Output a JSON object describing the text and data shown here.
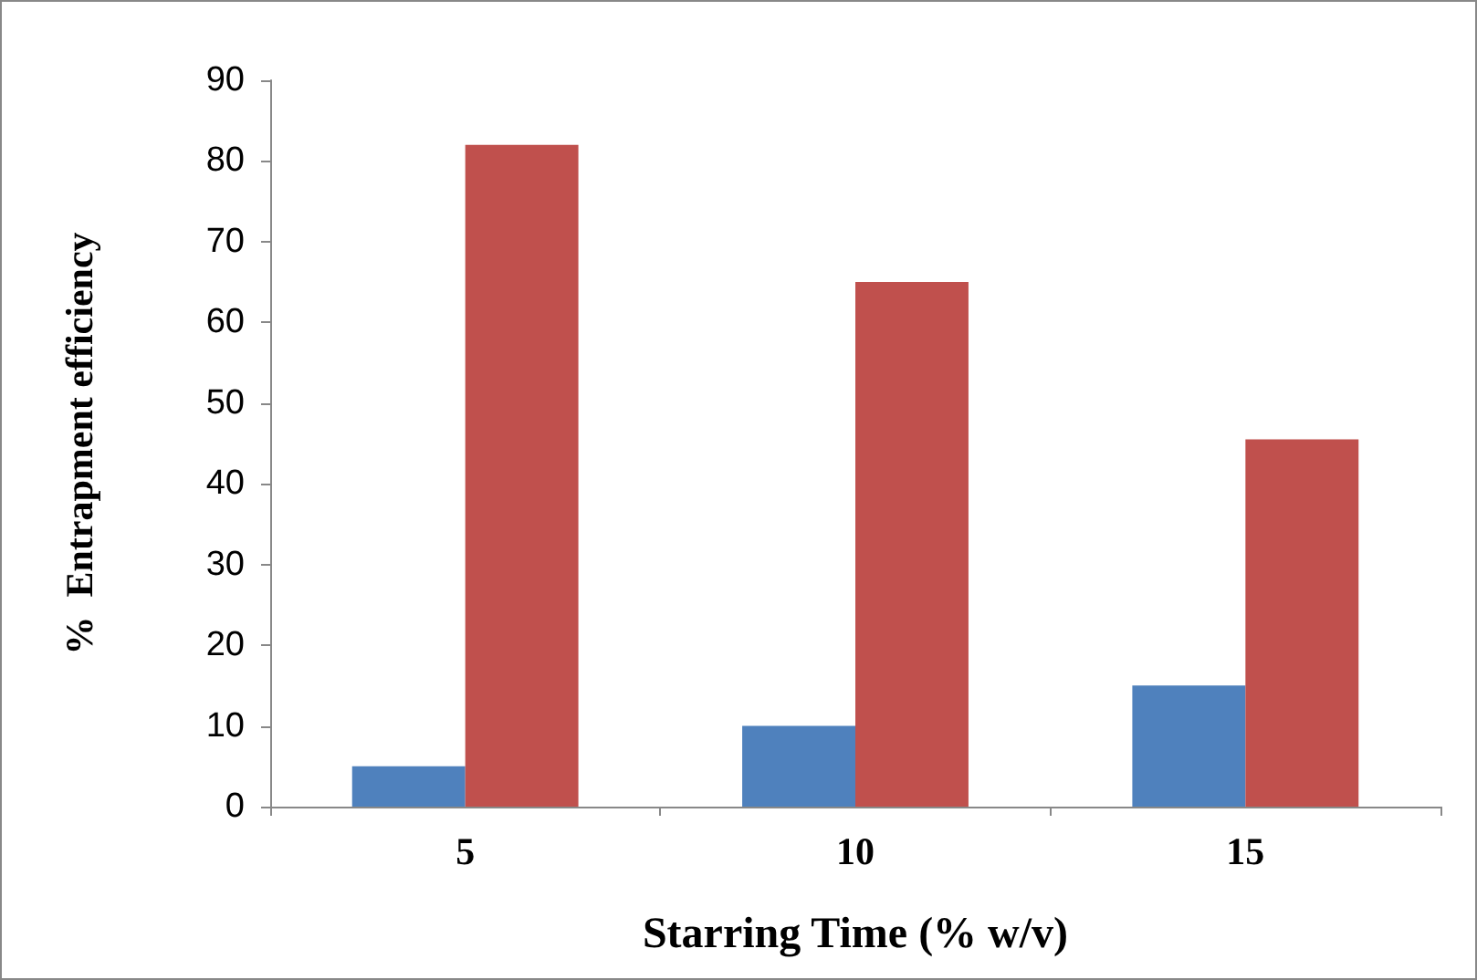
{
  "chart_data": {
    "type": "bar",
    "categories": [
      "5",
      "10",
      "15"
    ],
    "series": [
      {
        "color": "#4f81bd",
        "values": [
          5,
          10,
          15
        ]
      },
      {
        "color": "#c0504d",
        "values": [
          82,
          65,
          45.5
        ]
      }
    ],
    "xlabel": "Starring Time (% w/v)",
    "ylabel": "%  Entrapment efficiency",
    "ylim": [
      0,
      90
    ],
    "yticks": [
      0,
      10,
      20,
      30,
      40,
      50,
      60,
      70,
      80,
      90
    ]
  }
}
